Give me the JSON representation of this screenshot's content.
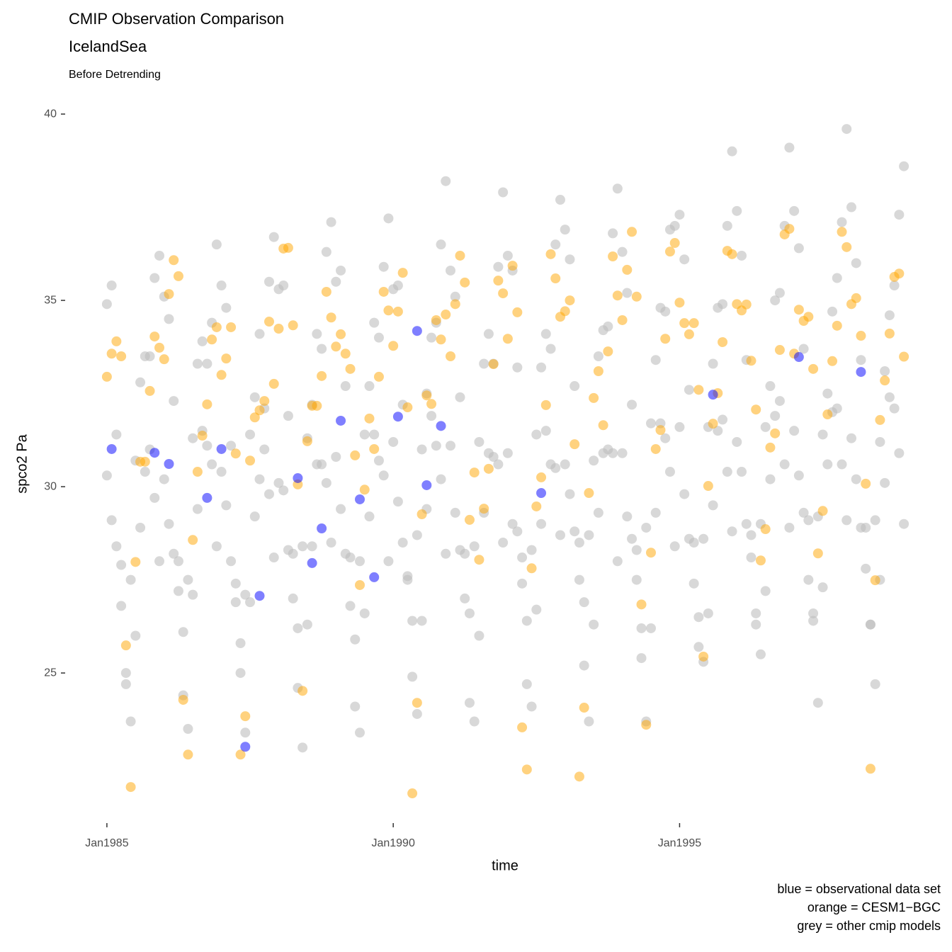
{
  "chart_data": {
    "type": "scatter",
    "title": "CMIP Observation Comparison",
    "subtitle": "IcelandSea",
    "subtitle2": "Before Detrending",
    "xlabel": "time",
    "ylabel": "spco2  Pa",
    "caption": [
      "blue = observational data set",
      "orange = CESM1−BGC",
      "grey = other cmip models"
    ],
    "xlim": [
      "1984-05",
      "1999-08"
    ],
    "xticks": [
      {
        "value": "1985-01",
        "label": "Jan1985"
      },
      {
        "value": "1990-01",
        "label": "Jan1990"
      },
      {
        "value": "1995-01",
        "label": "Jan1995"
      }
    ],
    "ylim": [
      21.2,
      40.4
    ],
    "yticks": [
      25,
      30,
      35,
      40
    ],
    "grid": false,
    "x": [
      "1985-01",
      "1985-02",
      "1985-03",
      "1985-04",
      "1985-05",
      "1985-06",
      "1985-07",
      "1985-08",
      "1985-09",
      "1985-10",
      "1985-11",
      "1985-12",
      "1986-01",
      "1986-02",
      "1986-03",
      "1986-04",
      "1986-05",
      "1986-06",
      "1986-07",
      "1986-08",
      "1986-09",
      "1986-10",
      "1986-11",
      "1986-12",
      "1987-01",
      "1987-02",
      "1987-03",
      "1987-04",
      "1987-05",
      "1987-06",
      "1987-07",
      "1987-08",
      "1987-09",
      "1987-10",
      "1987-11",
      "1987-12",
      "1988-01",
      "1988-02",
      "1988-03",
      "1988-04",
      "1988-05",
      "1988-06",
      "1988-07",
      "1988-08",
      "1988-09",
      "1988-10",
      "1988-11",
      "1988-12",
      "1989-01",
      "1989-02",
      "1989-03",
      "1989-04",
      "1989-05",
      "1989-06",
      "1989-07",
      "1989-08",
      "1989-09",
      "1989-10",
      "1989-11",
      "1989-12",
      "1990-01",
      "1990-02",
      "1990-03",
      "1990-04",
      "1990-05",
      "1990-06",
      "1990-07",
      "1990-08",
      "1990-09",
      "1990-10",
      "1990-11",
      "1990-12",
      "1991-01",
      "1991-02",
      "1991-03",
      "1991-04",
      "1991-05",
      "1991-06",
      "1991-07",
      "1991-08",
      "1991-09",
      "1991-10",
      "1991-11",
      "1991-12",
      "1992-01",
      "1992-02",
      "1992-03",
      "1992-04",
      "1992-05",
      "1992-06",
      "1992-07",
      "1992-08",
      "1992-09",
      "1992-10",
      "1992-11",
      "1992-12",
      "1993-01",
      "1993-02",
      "1993-03",
      "1993-04",
      "1993-05",
      "1993-06",
      "1993-07",
      "1993-08",
      "1993-09",
      "1993-10",
      "1993-11",
      "1993-12",
      "1994-01",
      "1994-02",
      "1994-03",
      "1994-04",
      "1994-05",
      "1994-06",
      "1994-07",
      "1994-08",
      "1994-09",
      "1994-10",
      "1994-11",
      "1994-12",
      "1995-01",
      "1995-02",
      "1995-03",
      "1995-04",
      "1995-05",
      "1995-06",
      "1995-07",
      "1995-08",
      "1995-09",
      "1995-10",
      "1995-11",
      "1995-12",
      "1996-01",
      "1996-02",
      "1996-03",
      "1996-04",
      "1996-05",
      "1996-06",
      "1996-07",
      "1996-08",
      "1996-09",
      "1996-10",
      "1996-11",
      "1996-12",
      "1997-01",
      "1997-02",
      "1997-03",
      "1997-04",
      "1997-05",
      "1997-06",
      "1997-07",
      "1997-08",
      "1997-09",
      "1997-10",
      "1997-11",
      "1997-12",
      "1998-01",
      "1998-02",
      "1998-03",
      "1998-04",
      "1998-05",
      "1998-06",
      "1998-07",
      "1998-08",
      "1998-09",
      "1998-10",
      "1998-11",
      "1998-12"
    ],
    "series": [
      {
        "color": "#bebebe",
        "opacity": 0.6,
        "values": [
          34.9,
          35.4,
          31.4,
          27.9,
          24.7,
          23.7,
          26.0,
          28.9,
          30.4,
          33.5,
          35.6,
          36.2,
          35.1,
          34.5,
          32.3,
          28.0,
          24.4,
          23.5,
          27.1,
          29.4,
          31.5,
          33.3,
          34.4,
          36.5,
          35.4,
          34.8,
          31.1,
          27.4,
          25.0,
          23.4,
          26.9,
          29.2,
          30.2,
          32.1,
          35.5,
          36.7,
          35.3,
          35.4,
          31.9,
          28.2,
          24.6,
          23.0,
          26.3,
          28.4,
          30.6,
          33.7,
          36.3,
          37.1,
          35.5,
          35.8,
          32.7,
          28.1,
          24.1,
          23.4,
          26.6,
          29.2,
          31.4,
          34.0,
          35.9,
          37.2,
          35.3,
          35.4,
          32.2,
          27.6,
          24.9,
          23.9,
          26.4,
          29.4,
          31.9,
          34.4,
          36.5,
          38.2,
          35.8,
          35.1,
          32.4,
          28.2,
          24.2,
          23.7,
          26.0,
          29.3,
          30.9,
          33.3,
          35.9,
          37.9,
          36.2,
          35.8,
          33.2,
          28.1,
          24.7,
          24.1,
          26.7,
          29.0,
          31.5,
          33.7,
          36.5,
          37.7,
          36.9,
          36.1,
          32.7,
          28.5,
          25.2,
          23.7,
          26.3,
          29.3,
          30.9,
          34.3,
          36.8,
          38.0,
          36.3,
          35.2,
          32.2,
          28.3,
          25.4,
          23.7,
          26.2,
          29.3,
          31.7,
          34.7,
          36.9,
          37.0,
          37.3,
          36.1,
          32.6,
          28.5,
          25.7,
          25.3,
          26.6,
          29.5,
          31.5,
          34.9,
          37.0,
          39.0,
          37.4,
          36.2,
          33.4,
          28.7,
          26.3,
          25.5,
          27.2,
          30.2,
          31.9,
          35.2,
          37.0,
          39.1,
          37.4,
          36.4,
          33.7,
          29.1,
          26.6,
          24.2,
          27.3,
          30.6,
          32.0,
          35.6,
          37.1,
          39.6,
          37.5,
          36.0,
          33.4,
          28.9,
          26.3,
          24.7,
          27.5,
          30.1,
          32.4,
          35.4,
          37.3,
          38.6
        ]
      },
      {
        "color": "#bebebe",
        "opacity": 0.6,
        "values": [
          30.3,
          29.1,
          28.4,
          26.8,
          25.0,
          27.5,
          30.7,
          32.8,
          33.5,
          31.0,
          29.7,
          28.0,
          30.2,
          29.0,
          28.2,
          27.2,
          26.1,
          27.5,
          31.3,
          33.3,
          33.9,
          31.1,
          30.6,
          28.4,
          30.4,
          29.5,
          28.0,
          26.9,
          25.8,
          27.1,
          31.4,
          32.4,
          34.1,
          31.0,
          29.8,
          28.1,
          30.1,
          29.9,
          28.3,
          27.0,
          26.2,
          28.4,
          31.3,
          32.2,
          34.1,
          30.6,
          30.1,
          28.5,
          30.8,
          29.4,
          28.2,
          26.8,
          25.9,
          28.0,
          31.4,
          32.7,
          34.4,
          30.7,
          30.3,
          28.0,
          31.2,
          29.6,
          28.5,
          27.5,
          26.4,
          28.7,
          31.0,
          32.5,
          34.0,
          31.1,
          30.2,
          28.2,
          31.1,
          29.3,
          28.3,
          27.0,
          26.6,
          28.4,
          31.2,
          33.3,
          34.1,
          30.8,
          30.6,
          28.5,
          30.9,
          29.0,
          28.8,
          27.4,
          26.4,
          28.3,
          31.4,
          33.2,
          34.1,
          30.6,
          30.5,
          28.7,
          30.6,
          29.8,
          28.8,
          27.5,
          26.9,
          28.7,
          30.7,
          33.5,
          34.2,
          31.0,
          30.9,
          28.0,
          30.9,
          29.2,
          28.6,
          27.5,
          26.2,
          28.9,
          31.7,
          33.4,
          34.8,
          31.3,
          30.4,
          28.4,
          31.6,
          29.8,
          28.6,
          27.4,
          26.5,
          28.6,
          31.6,
          33.3,
          34.8,
          31.8,
          30.4,
          28.8,
          31.2,
          30.4,
          29.0,
          28.1,
          26.6,
          29.0,
          31.6,
          32.7,
          35.0,
          32.3,
          30.6,
          28.9,
          31.5,
          30.3,
          29.3,
          27.5,
          26.4,
          29.2,
          31.4,
          32.5,
          34.7,
          32.1,
          30.6,
          29.1,
          31.3,
          30.2,
          28.9,
          27.8,
          26.3,
          29.1,
          31.2,
          33.1,
          34.6,
          32.1,
          30.9,
          29.0
        ]
      },
      {
        "color": "#ffa500",
        "opacity": 0.5,
        "values": [
          32.95,
          33.57,
          33.9,
          33.5,
          25.74,
          21.94,
          27.98,
          30.67,
          30.67,
          32.57,
          34.03,
          33.73,
          33.42,
          35.17,
          36.08,
          35.65,
          24.28,
          22.81,
          28.57,
          30.4,
          31.37,
          32.21,
          33.95,
          34.28,
          33.0,
          33.44,
          34.28,
          30.89,
          22.81,
          23.84,
          30.7,
          31.86,
          32.05,
          32.3,
          34.43,
          32.76,
          34.24,
          36.39,
          36.41,
          34.33,
          30.06,
          24.52,
          31.22,
          32.17,
          32.17,
          32.97,
          35.23,
          34.54,
          33.76,
          34.09,
          33.57,
          33.16,
          30.84,
          27.36,
          29.92,
          31.83,
          31.01,
          32.95,
          35.23,
          34.73,
          33.78,
          34.7,
          35.74,
          32.13,
          21.77,
          24.2,
          29.26,
          32.45,
          32.22,
          34.47,
          33.95,
          34.62,
          33.5,
          34.9,
          36.2,
          35.48,
          29.11,
          30.38,
          28.04,
          29.41,
          30.48,
          33.29,
          35.53,
          35.19,
          33.97,
          35.93,
          34.68,
          23.54,
          22.41,
          27.81,
          29.47,
          30.25,
          32.19,
          36.24,
          35.59,
          34.56,
          34.71,
          35.0,
          31.14,
          22.22,
          24.07,
          29.83,
          32.38,
          33.1,
          31.65,
          33.63,
          36.18,
          35.13,
          34.47,
          35.82,
          36.84,
          35.1,
          26.84,
          23.61,
          28.23,
          31.01,
          31.52,
          33.97,
          36.31,
          36.54,
          34.94,
          34.39,
          34.09,
          34.39,
          32.6,
          25.44,
          30.02,
          31.69,
          32.51,
          33.88,
          36.33,
          36.24,
          34.9,
          34.73,
          34.89,
          33.38,
          32.07,
          28.02,
          28.86,
          31.05,
          31.43,
          33.67,
          36.77,
          36.92,
          33.57,
          34.75,
          34.45,
          34.56,
          33.16,
          28.21,
          29.35,
          31.94,
          33.37,
          34.32,
          36.84,
          36.43,
          34.9,
          35.06,
          34.05,
          30.08,
          22.43,
          27.49,
          31.79,
          32.85,
          34.11,
          35.63,
          35.72,
          33.49
        ]
      },
      {
        "color": "#0000ff",
        "opacity": 0.5,
        "x": [
          "1985-02",
          "1985-11",
          "1986-02",
          "1986-10",
          "1987-01",
          "1987-06",
          "1987-09",
          "1988-05",
          "1988-08",
          "1988-10",
          "1989-02",
          "1989-06",
          "1989-09",
          "1990-02",
          "1990-06",
          "1990-08",
          "1990-11",
          "1992-08",
          "1995-08",
          "1997-02",
          "1998-03"
        ],
        "values": [
          31.01,
          30.91,
          30.61,
          29.7,
          31.01,
          23.02,
          27.07,
          30.23,
          27.95,
          28.88,
          31.77,
          29.66,
          27.57,
          31.88,
          34.18,
          30.04,
          31.63,
          29.83,
          32.47,
          33.48,
          33.08
        ]
      }
    ]
  }
}
